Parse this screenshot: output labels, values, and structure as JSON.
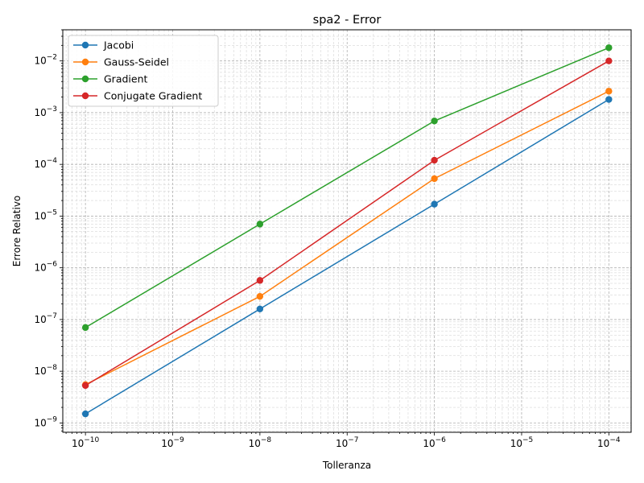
{
  "chart_data": {
    "type": "line",
    "title": "spa2 - Error",
    "xlabel": "Tolleranza",
    "ylabel": "Errore Relativo",
    "xscale": "log",
    "yscale": "log",
    "xlim": [
      5.5e-11,
      0.00018
    ],
    "ylim": [
      6.6e-10,
      0.04
    ],
    "grid": "both (major and minor), dashed",
    "legend": "top-left",
    "x": [
      1e-10,
      1e-08,
      1e-06,
      0.0001
    ],
    "x_tick_labels": [
      {
        "base": "10",
        "exp": "−10",
        "value": 1e-10
      },
      {
        "base": "10",
        "exp": "−9",
        "value": 1e-09
      },
      {
        "base": "10",
        "exp": "−8",
        "value": 1e-08
      },
      {
        "base": "10",
        "exp": "−7",
        "value": 1e-07
      },
      {
        "base": "10",
        "exp": "−6",
        "value": 1e-06
      },
      {
        "base": "10",
        "exp": "−5",
        "value": 1e-05
      },
      {
        "base": "10",
        "exp": "−4",
        "value": 0.0001
      }
    ],
    "y_tick_labels": [
      {
        "base": "10",
        "exp": "−9",
        "value": 1e-09
      },
      {
        "base": "10",
        "exp": "−8",
        "value": 1e-08
      },
      {
        "base": "10",
        "exp": "−7",
        "value": 1e-07
      },
      {
        "base": "10",
        "exp": "−6",
        "value": 1e-06
      },
      {
        "base": "10",
        "exp": "−5",
        "value": 1e-05
      },
      {
        "base": "10",
        "exp": "−4",
        "value": 0.0001
      },
      {
        "base": "10",
        "exp": "−3",
        "value": 0.001
      },
      {
        "base": "10",
        "exp": "−2",
        "value": 0.01
      }
    ],
    "series": [
      {
        "name": "Jacobi",
        "color": "#1f77b4",
        "values": [
          1.5e-09,
          1.6e-07,
          1.7e-05,
          0.0018
        ]
      },
      {
        "name": "Gauss-Seidel",
        "color": "#ff7f0e",
        "values": [
          5.5e-09,
          2.8e-07,
          5.3e-05,
          0.0026
        ]
      },
      {
        "name": "Gradient",
        "color": "#2ca02c",
        "values": [
          7e-08,
          7e-06,
          0.00069,
          0.018
        ]
      },
      {
        "name": "Conjugate Gradient",
        "color": "#d62728",
        "values": [
          5.3e-09,
          5.7e-07,
          0.00012,
          0.01
        ]
      }
    ]
  }
}
